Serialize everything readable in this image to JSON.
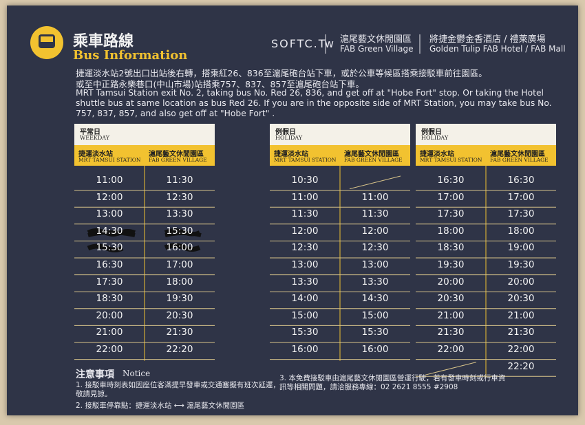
{
  "header": {
    "title_zh": "乘車路線",
    "title_en": "Bus Information",
    "logo": "SOFTC.Tw",
    "venue1_zh": "滬尾藝文休閒園區",
    "venue1_en": "FAB Green Village",
    "venue2_zh": "將捷金鬱金香酒店 / 禮萊廣場",
    "venue2_en": "Golden Tulip FAB Hotel / FAB Mall"
  },
  "directions": {
    "zh": [
      "捷運淡水站2號出口出站後右轉，搭乘紅26、836至滬尾砲台站下車，或於公車等候區搭乘接駁車前往園區。",
      "或至中正路永樂巷口(中山市場)站搭乘757、837、857至滬尾砲台站下車。"
    ],
    "en": "MRT Tamsui Station exit No. 2, taking bus No. Red 26, 836, and get off at \"Hobe Fort\" stop. Or taking the Hotel shuttle bus at same location as bus Red 26. If you are in the opposite side of MRT Station, you may take bus No. 757, 837, 857, and also get off at \"Hobe Fort\" ."
  },
  "timetables": [
    {
      "label_zh": "平常日",
      "label_en": "WEEKDAY",
      "columns": [
        {
          "zh": "捷運淡水站",
          "en": "MRT TAMSUI STATION"
        },
        {
          "zh": "滬尾藝文休閒園區",
          "en": "FAB GREEN VILLAGE"
        }
      ],
      "rows": [
        [
          "11:00",
          "11:30"
        ],
        [
          "12:00",
          "12:30"
        ],
        [
          "13:00",
          "13:30"
        ],
        [
          "14:30",
          "15:30"
        ],
        [
          "15:30",
          "16:00"
        ],
        [
          "16:30",
          "17:00"
        ],
        [
          "17:30",
          "18:00"
        ],
        [
          "18:30",
          "19:30"
        ],
        [
          "20:00",
          "20:30"
        ],
        [
          "21:00",
          "21:30"
        ],
        [
          "22:00",
          "22:20"
        ]
      ]
    },
    {
      "label_zh": "例假日",
      "label_en": "HOLIDAY",
      "columns": [
        {
          "zh": "捷運淡水站",
          "en": "MRT TAMSUI STATION"
        },
        {
          "zh": "滬尾藝文休閒園區",
          "en": "FAB GREEN VILLAGE"
        }
      ],
      "rows": [
        [
          "10:30",
          null
        ],
        [
          "11:00",
          "11:00"
        ],
        [
          "11:30",
          "11:30"
        ],
        [
          "12:00",
          "12:00"
        ],
        [
          "12:30",
          "12:30"
        ],
        [
          "13:00",
          "13:00"
        ],
        [
          "13:30",
          "13:30"
        ],
        [
          "14:00",
          "14:30"
        ],
        [
          "15:00",
          "15:00"
        ],
        [
          "15:30",
          "15:30"
        ],
        [
          "16:00",
          "16:00"
        ]
      ]
    },
    {
      "label_zh": "例假日",
      "label_en": "HOLIDAY",
      "columns": [
        {
          "zh": "捷運淡水站",
          "en": "MRT TAMSUI STATION"
        },
        {
          "zh": "滬尾藝文休閒園區",
          "en": "FAB GREEN VILLAGE"
        }
      ],
      "rows": [
        [
          "16:30",
          "16:30"
        ],
        [
          "17:00",
          "17:00"
        ],
        [
          "17:30",
          "17:30"
        ],
        [
          "18:00",
          "18:00"
        ],
        [
          "18:30",
          "19:00"
        ],
        [
          "19:30",
          "19:30"
        ],
        [
          "20:00",
          "20:00"
        ],
        [
          "20:30",
          "20:30"
        ],
        [
          "21:00",
          "21:00"
        ],
        [
          "21:30",
          "21:30"
        ],
        [
          "22:00",
          "22:00"
        ],
        [
          null,
          "22:20"
        ]
      ]
    }
  ],
  "notice": {
    "title_zh": "注意事項",
    "title_en": "Notice",
    "items": [
      "1. 接駁車時刻表如因座位客滿提早發車或交通塞擬有班次延遲，敬請見諒。",
      "2. 接駁車停靠點：捷運淡水站 ⟷ 滬尾藝文休閒園區",
      "3. 本免費接駁車由滬尾藝文休閒園區營運行駛，若有發車時刻或行車資訊等相關問題，請洽服務專線：02 2621 8555 #2908"
    ]
  }
}
